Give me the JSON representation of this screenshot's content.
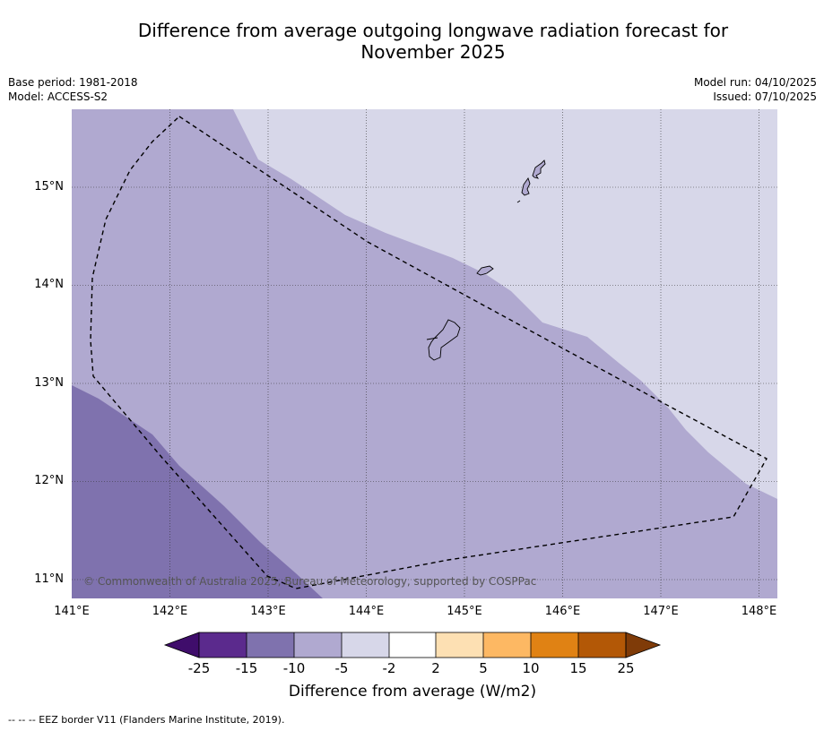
{
  "title_line1": "Difference from average outgoing longwave radiation forecast for",
  "title_line2": "November 2025",
  "meta": {
    "base_period": "Base period: 1981-2018",
    "model": "Model: ACCESS-S2",
    "model_run": "Model run: 04/10/2025",
    "issued": "Issued: 07/10/2025"
  },
  "lat_ticks": [
    "15°N",
    "14°N",
    "13°N",
    "12°N",
    "11°N"
  ],
  "lon_ticks": [
    "141°E",
    "142°E",
    "143°E",
    "144°E",
    "145°E",
    "146°E",
    "147°E",
    "148°E"
  ],
  "copyright": "© Commonwealth of Australia 2025, Bureau of Meteorology, supported by COSPPac",
  "colorbar": {
    "label": "Difference from average (W/m2)",
    "ticks": [
      "-25",
      "-15",
      "-10",
      "-5",
      "-2",
      "2",
      "5",
      "10",
      "15",
      "25"
    ],
    "colors": [
      "#3f0d6b",
      "#5b2a8d",
      "#7f72ae",
      "#b0a9d0",
      "#d7d7e9",
      "#ffffff",
      "#fde0b3",
      "#fdb863",
      "#e08214",
      "#b35806",
      "#7f3b08"
    ]
  },
  "fill_colors": {
    "light": "#d7d7e9",
    "medium": "#b0a9d0",
    "dark": "#7f72ae"
  },
  "footnote": "--  --  -- EEZ border V11 (Flanders Marine Institute, 2019)."
}
